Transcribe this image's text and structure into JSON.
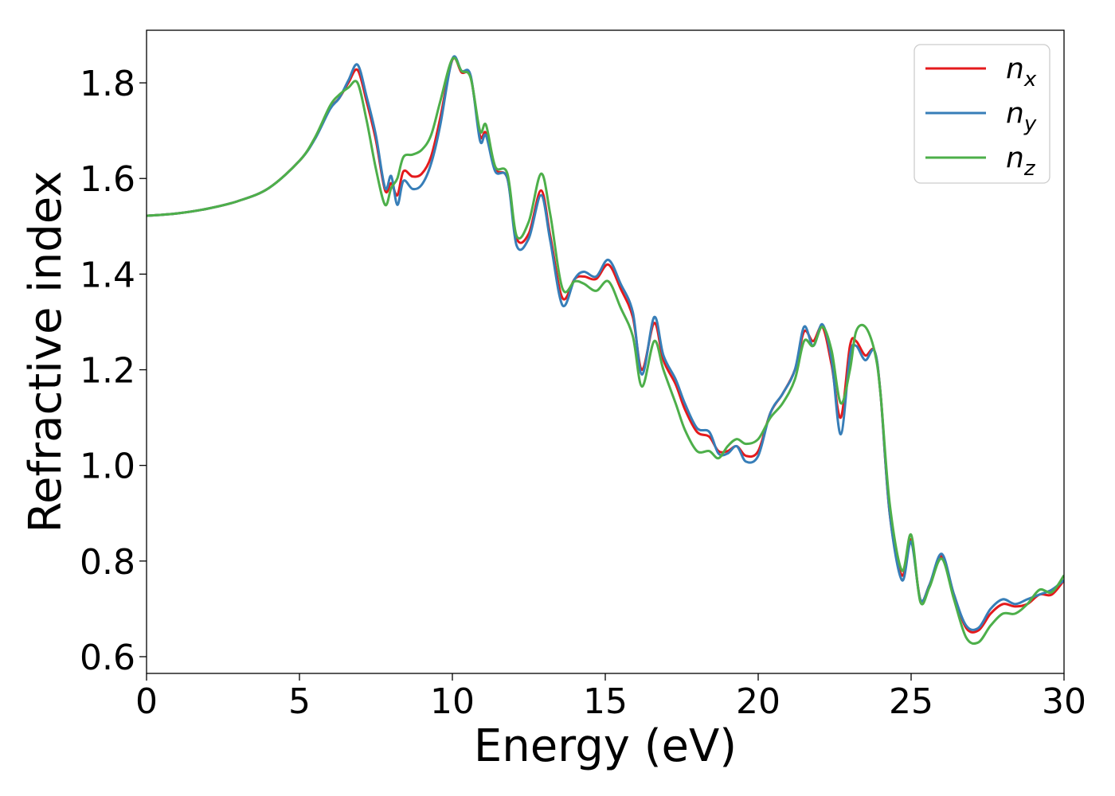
{
  "chart_data": {
    "type": "line",
    "xlabel": "Energy (eV)",
    "ylabel": "Refractive index",
    "xlim": [
      0,
      30
    ],
    "ylim": [
      0.565,
      1.91
    ],
    "xticks": [
      "0",
      "5",
      "10",
      "15",
      "20",
      "25",
      "30"
    ],
    "yticks": [
      "0.6",
      "0.8",
      "1.0",
      "1.2",
      "1.4",
      "1.6",
      "1.8"
    ],
    "grid": false,
    "legend_position": "top-right",
    "series": [
      {
        "name": "n",
        "subscript": "x",
        "color": "#e41a1c",
        "x": [
          0,
          1,
          2,
          3,
          4,
          5,
          5.5,
          6,
          6.3,
          6.6,
          6.9,
          7.2,
          7.5,
          7.8,
          8.0,
          8.2,
          8.4,
          8.7,
          9.0,
          9.3,
          9.6,
          10.0,
          10.3,
          10.6,
          10.9,
          11.1,
          11.4,
          11.8,
          12.1,
          12.5,
          12.9,
          13.2,
          13.6,
          14.0,
          14.3,
          14.7,
          15.1,
          15.5,
          15.9,
          16.2,
          16.6,
          16.9,
          17.3,
          17.6,
          18.0,
          18.4,
          18.7,
          19.0,
          19.3,
          19.6,
          20.0,
          20.4,
          20.8,
          21.2,
          21.5,
          21.8,
          22.1,
          22.4,
          22.7,
          23.0,
          23.2,
          23.5,
          23.8,
          24.0,
          24.3,
          24.7,
          25.0,
          25.3,
          25.6,
          26.0,
          26.4,
          26.8,
          27.2,
          27.6,
          28.0,
          28.4,
          28.8,
          29.2,
          29.6,
          30.0
        ],
        "y": [
          1.522,
          1.527,
          1.537,
          1.553,
          1.58,
          1.637,
          1.683,
          1.746,
          1.768,
          1.8,
          1.827,
          1.76,
          1.68,
          1.575,
          1.59,
          1.565,
          1.615,
          1.604,
          1.61,
          1.645,
          1.725,
          1.848,
          1.822,
          1.812,
          1.69,
          1.695,
          1.62,
          1.6,
          1.475,
          1.485,
          1.575,
          1.48,
          1.35,
          1.39,
          1.395,
          1.39,
          1.42,
          1.37,
          1.31,
          1.2,
          1.298,
          1.22,
          1.17,
          1.118,
          1.07,
          1.06,
          1.03,
          1.03,
          1.04,
          1.02,
          1.03,
          1.11,
          1.15,
          1.2,
          1.28,
          1.26,
          1.29,
          1.21,
          1.1,
          1.25,
          1.26,
          1.23,
          1.24,
          1.15,
          0.9,
          0.77,
          0.845,
          0.72,
          0.75,
          0.81,
          0.73,
          0.66,
          0.655,
          0.69,
          0.71,
          0.705,
          0.71,
          0.73,
          0.73,
          0.76
        ]
      },
      {
        "name": "n",
        "subscript": "y",
        "color": "#377eb8",
        "x": [
          0,
          1,
          2,
          3,
          4,
          5,
          5.5,
          6,
          6.3,
          6.6,
          6.9,
          7.2,
          7.5,
          7.8,
          8.0,
          8.2,
          8.4,
          8.7,
          9.0,
          9.3,
          9.6,
          10.0,
          10.3,
          10.6,
          10.9,
          11.1,
          11.4,
          11.8,
          12.1,
          12.5,
          12.9,
          13.2,
          13.6,
          14.0,
          14.3,
          14.7,
          15.1,
          15.5,
          15.9,
          16.2,
          16.6,
          16.9,
          17.3,
          17.6,
          18.0,
          18.4,
          18.7,
          19.0,
          19.3,
          19.6,
          20.0,
          20.4,
          20.8,
          21.2,
          21.5,
          21.8,
          22.1,
          22.4,
          22.7,
          23.0,
          23.2,
          23.5,
          23.8,
          24.0,
          24.3,
          24.7,
          25.0,
          25.3,
          25.6,
          26.0,
          26.4,
          26.8,
          27.2,
          27.6,
          28.0,
          28.4,
          28.8,
          29.2,
          29.6,
          30.0
        ],
        "y": [
          1.522,
          1.527,
          1.537,
          1.553,
          1.58,
          1.637,
          1.682,
          1.745,
          1.768,
          1.805,
          1.838,
          1.77,
          1.69,
          1.58,
          1.605,
          1.545,
          1.595,
          1.578,
          1.587,
          1.63,
          1.71,
          1.85,
          1.825,
          1.815,
          1.68,
          1.69,
          1.615,
          1.6,
          1.46,
          1.475,
          1.565,
          1.47,
          1.335,
          1.39,
          1.405,
          1.395,
          1.43,
          1.38,
          1.32,
          1.19,
          1.31,
          1.23,
          1.18,
          1.13,
          1.078,
          1.07,
          1.025,
          1.025,
          1.04,
          1.008,
          1.02,
          1.11,
          1.15,
          1.2,
          1.29,
          1.25,
          1.295,
          1.22,
          1.065,
          1.23,
          1.25,
          1.22,
          1.24,
          1.15,
          0.9,
          0.76,
          0.84,
          0.72,
          0.75,
          0.815,
          0.73,
          0.665,
          0.66,
          0.7,
          0.72,
          0.71,
          0.72,
          0.73,
          0.74,
          0.76
        ]
      },
      {
        "name": "n",
        "subscript": "z",
        "color": "#4daf4a",
        "x": [
          0,
          1,
          2,
          3,
          4,
          5,
          5.5,
          6,
          6.3,
          6.6,
          6.9,
          7.2,
          7.5,
          7.8,
          8.0,
          8.2,
          8.4,
          8.7,
          9.0,
          9.3,
          9.6,
          10.0,
          10.3,
          10.6,
          10.9,
          11.1,
          11.4,
          11.8,
          12.1,
          12.5,
          12.9,
          13.2,
          13.6,
          14.0,
          14.3,
          14.7,
          15.1,
          15.5,
          15.9,
          16.2,
          16.6,
          16.9,
          17.3,
          17.6,
          18.0,
          18.4,
          18.7,
          19.0,
          19.3,
          19.6,
          20.0,
          20.4,
          20.8,
          21.2,
          21.5,
          21.8,
          22.1,
          22.4,
          22.7,
          23.0,
          23.2,
          23.5,
          23.8,
          24.0,
          24.3,
          24.7,
          25.0,
          25.3,
          25.6,
          26.0,
          26.4,
          26.8,
          27.2,
          27.6,
          28.0,
          28.4,
          28.8,
          29.2,
          29.6,
          30.0
        ],
        "y": [
          1.522,
          1.527,
          1.537,
          1.553,
          1.58,
          1.637,
          1.685,
          1.752,
          1.775,
          1.79,
          1.8,
          1.72,
          1.62,
          1.545,
          1.58,
          1.6,
          1.645,
          1.65,
          1.66,
          1.69,
          1.76,
          1.85,
          1.825,
          1.81,
          1.7,
          1.712,
          1.625,
          1.61,
          1.48,
          1.51,
          1.61,
          1.525,
          1.37,
          1.385,
          1.38,
          1.365,
          1.385,
          1.33,
          1.27,
          1.165,
          1.26,
          1.2,
          1.13,
          1.075,
          1.03,
          1.03,
          1.015,
          1.04,
          1.055,
          1.045,
          1.055,
          1.1,
          1.13,
          1.18,
          1.26,
          1.25,
          1.29,
          1.24,
          1.13,
          1.2,
          1.28,
          1.29,
          1.24,
          1.15,
          0.92,
          0.78,
          0.855,
          0.715,
          0.745,
          0.805,
          0.72,
          0.64,
          0.63,
          0.665,
          0.69,
          0.69,
          0.71,
          0.74,
          0.735,
          0.77
        ]
      }
    ]
  }
}
